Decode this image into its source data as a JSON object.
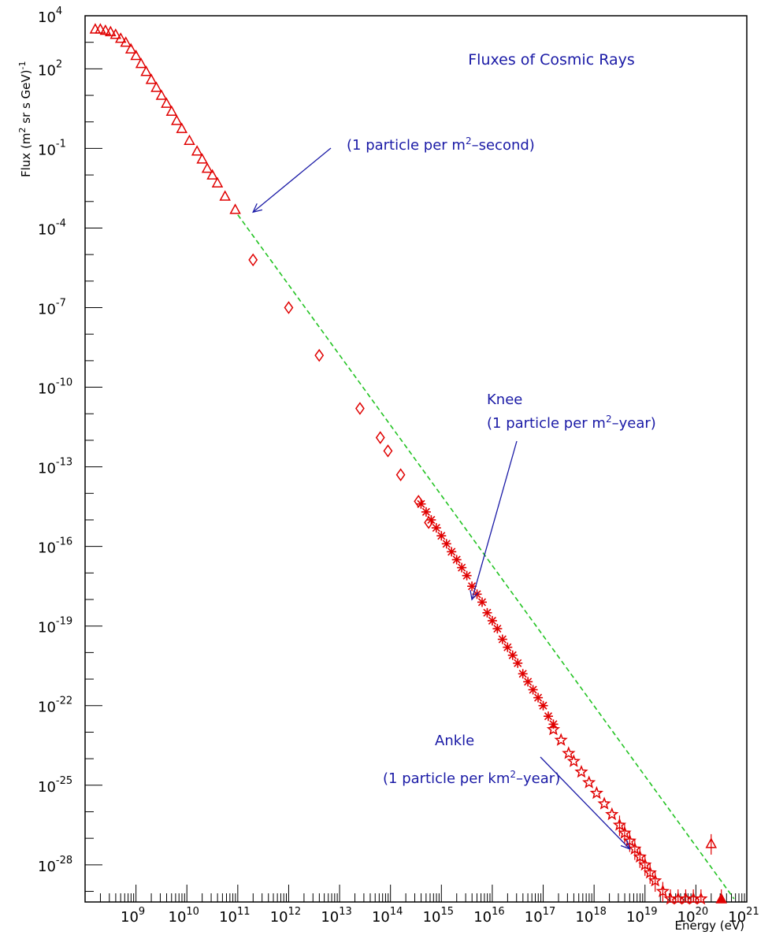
{
  "chart_data": {
    "type": "scatter",
    "title": "Fluxes of Cosmic Rays",
    "xlabel": "Energy (eV)",
    "ylabel": {
      "base": "Flux (m",
      "sup1": "2",
      "mid": " sr s GeV)",
      "sup2": "-1"
    },
    "x_scale": "log",
    "y_scale": "log",
    "xlim_exp": [
      8,
      21
    ],
    "ylim_exp": [
      -29.4,
      4
    ],
    "x_tick_exponents": [
      "9",
      "10",
      "11",
      "12",
      "13",
      "14",
      "15",
      "16",
      "17",
      "18",
      "19",
      "20",
      "21"
    ],
    "y_tick_exponents": [
      "4",
      "2",
      "-1",
      "-4",
      "-7",
      "-10",
      "-13",
      "-16",
      "-19",
      "-22",
      "-25",
      "-28"
    ],
    "grid": false,
    "colors": {
      "axis": "#000000",
      "data": "#e00000",
      "reference": "#22c322",
      "annotation": "#1a1aa6"
    },
    "series": [
      {
        "marker": "triangle-open",
        "points": [
          [
            8.2,
            3.5
          ],
          [
            8.3,
            3.5
          ],
          [
            8.4,
            3.45
          ],
          [
            8.5,
            3.4
          ],
          [
            8.6,
            3.3
          ],
          [
            8.7,
            3.15
          ],
          [
            8.8,
            3.0
          ],
          [
            8.9,
            2.75
          ],
          [
            9.0,
            2.5
          ],
          [
            9.1,
            2.2
          ],
          [
            9.2,
            1.9
          ],
          [
            9.3,
            1.6
          ],
          [
            9.4,
            1.3
          ],
          [
            9.5,
            1.0
          ],
          [
            9.6,
            0.7
          ],
          [
            9.7,
            0.4
          ],
          [
            9.8,
            0.05
          ],
          [
            9.9,
            -0.25
          ],
          [
            10.05,
            -0.7
          ],
          [
            10.2,
            -1.1
          ],
          [
            10.3,
            -1.4
          ],
          [
            10.4,
            -1.75
          ],
          [
            10.5,
            -2.0
          ],
          [
            10.6,
            -2.3
          ],
          [
            10.75,
            -2.8
          ],
          [
            10.95,
            -3.3
          ],
          [
            20.3,
            -27.2
          ]
        ]
      },
      {
        "marker": "diamond-open",
        "points": [
          [
            11.3,
            -5.2
          ],
          [
            12.0,
            -7.0
          ],
          [
            12.6,
            -8.8
          ],
          [
            13.4,
            -10.8
          ],
          [
            13.8,
            -11.9
          ],
          [
            13.95,
            -12.4
          ],
          [
            14.2,
            -13.3
          ],
          [
            14.55,
            -14.3
          ],
          [
            14.75,
            -15.1
          ]
        ]
      },
      {
        "marker": "star",
        "points": [
          [
            14.6,
            -14.4
          ],
          [
            14.7,
            -14.7
          ],
          [
            14.8,
            -15.0
          ],
          [
            14.9,
            -15.3
          ],
          [
            15.0,
            -15.6
          ],
          [
            15.1,
            -15.9
          ],
          [
            15.2,
            -16.2
          ],
          [
            15.3,
            -16.5
          ],
          [
            15.4,
            -16.8
          ],
          [
            15.5,
            -17.1
          ],
          [
            15.6,
            -17.5
          ],
          [
            15.7,
            -17.8
          ],
          [
            15.8,
            -18.1
          ],
          [
            15.9,
            -18.5
          ],
          [
            16.0,
            -18.8
          ],
          [
            16.1,
            -19.1
          ],
          [
            16.2,
            -19.5
          ],
          [
            16.3,
            -19.8
          ],
          [
            16.4,
            -20.1
          ],
          [
            16.5,
            -20.4
          ],
          [
            16.6,
            -20.8
          ],
          [
            16.7,
            -21.1
          ],
          [
            16.8,
            -21.4
          ],
          [
            16.9,
            -21.7
          ],
          [
            17.0,
            -22.0
          ],
          [
            17.1,
            -22.4
          ],
          [
            17.2,
            -22.7
          ]
        ]
      },
      {
        "marker": "star-open",
        "points": [
          [
            17.2,
            -22.9
          ],
          [
            17.35,
            -23.3
          ],
          [
            17.5,
            -23.8
          ],
          [
            17.6,
            -24.1
          ],
          [
            17.75,
            -24.5
          ],
          [
            17.9,
            -24.9
          ],
          [
            18.05,
            -25.3
          ],
          [
            18.2,
            -25.7
          ],
          [
            18.35,
            -26.1
          ],
          [
            18.5,
            -26.5
          ],
          [
            18.6,
            -26.8
          ],
          [
            18.7,
            -27.1
          ],
          [
            18.8,
            -27.4
          ],
          [
            18.9,
            -27.7
          ],
          [
            19.0,
            -28.0
          ],
          [
            19.1,
            -28.3
          ],
          [
            19.2,
            -28.6
          ],
          [
            19.35,
            -29.0
          ],
          [
            19.5,
            -29.4
          ],
          [
            19.65,
            -29.8
          ],
          [
            19.8,
            -30.3
          ],
          [
            19.95,
            -30.8
          ],
          [
            20.1,
            -31.2
          ]
        ]
      },
      {
        "marker": "triangle-filled",
        "points": [
          [
            20.5,
            -33.0
          ]
        ]
      }
    ],
    "reference_line": {
      "style": "dashed",
      "points": [
        [
          11.0,
          -3.5
        ],
        [
          20.75,
          -33.9
        ]
      ]
    },
    "annotations": [
      {
        "lines": [
          "(1 particle per m",
          "2",
          "–second)"
        ],
        "arrow_to": [
          11.3,
          -3.4
        ]
      },
      {
        "lines": [
          "Knee"
        ]
      },
      {
        "lines": [
          "(1 particle per m",
          "2",
          "–year)"
        ],
        "arrow_to": [
          15.6,
          -18.0
        ]
      },
      {
        "lines": [
          "Ankle"
        ],
        "arrow_to": [
          18.7,
          -27.4
        ]
      },
      {
        "lines": [
          "(1 particle per km",
          "2",
          "–year)"
        ]
      }
    ]
  }
}
